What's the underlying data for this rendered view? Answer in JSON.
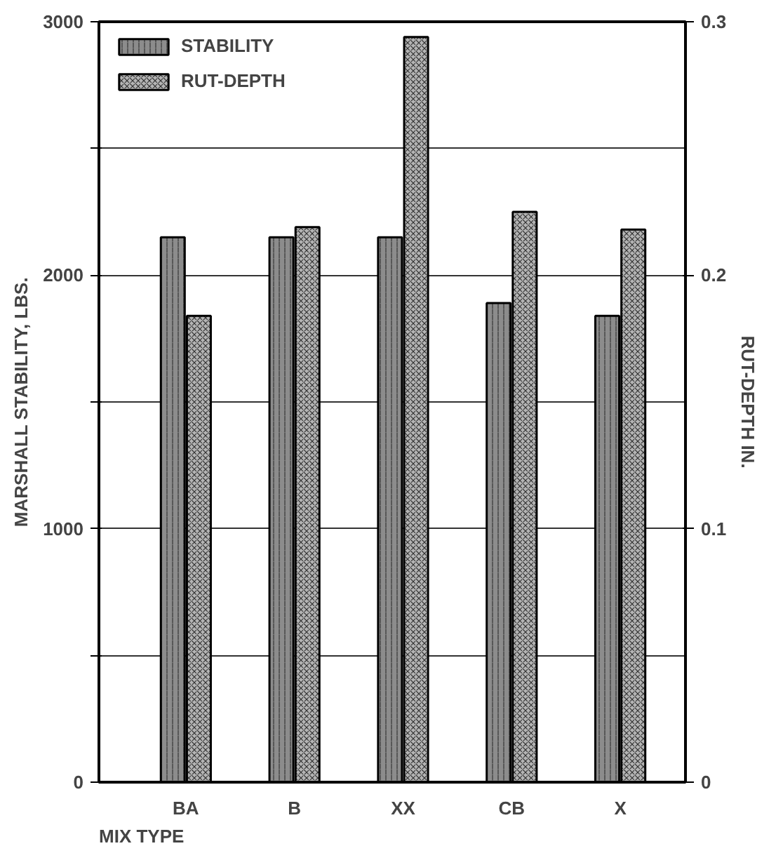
{
  "chart_data": {
    "type": "bar",
    "xlabel": "MIX TYPE",
    "ylabel": "MARSHALL STABILITY, LBS.",
    "y2label": "RUT-DEPTH IN.",
    "categories": [
      "BA",
      "B",
      "XX",
      "CB",
      "X"
    ],
    "series": [
      {
        "name": "STABILITY",
        "color": "#8c8c8c",
        "values": [
          2150,
          2150,
          2150,
          1890,
          1840
        ]
      },
      {
        "name": "RUT-DEPTH",
        "color": "#b4b4b4",
        "axis": "y2",
        "values": [
          0.184,
          0.219,
          0.294,
          0.225,
          0.218
        ]
      }
    ],
    "ylim": [
      0,
      3000
    ],
    "yticks": [
      0,
      {
        "value": 500,
        "label": null
      },
      1000,
      {
        "value": 1500,
        "label": null
      },
      2000,
      {
        "value": 2500,
        "label": null
      },
      3000
    ],
    "y2lim": [
      0,
      0.3
    ],
    "y2ticks": [
      0,
      0.1,
      0.2,
      0.3
    ],
    "grid": "y",
    "legend": "top left"
  }
}
